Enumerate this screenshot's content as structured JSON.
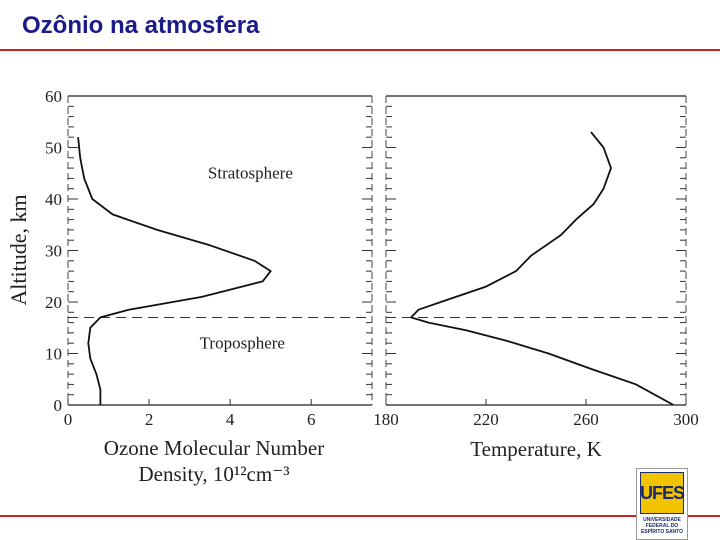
{
  "slide": {
    "title": "Ozônio na atmosfera",
    "accent_color": "#cc2222",
    "title_color": "#1a1a8c"
  },
  "logo": {
    "mark": "UFES",
    "caption": "UNIVERSIDADE FEDERAL DO ESPÍRITO SANTO",
    "icon": "university-logo"
  },
  "chart_data": [
    {
      "type": "line",
      "title": "",
      "xlabel_lines": [
        "Ozone Molecular Number",
        "Density, 10¹²cm⁻³"
      ],
      "ylabel": "Altitude, km",
      "xlim": [
        0,
        7.5
      ],
      "ylim": [
        0,
        60
      ],
      "xticks": [
        "0",
        "2",
        "4",
        "6"
      ],
      "xtick_values": [
        0,
        2,
        4,
        6
      ],
      "yticks": [
        "0",
        "10",
        "20",
        "30",
        "40",
        "50",
        "60"
      ],
      "ytick_values": [
        0,
        10,
        20,
        30,
        40,
        50,
        60
      ],
      "annotations": [
        {
          "text": "Stratosphere",
          "x": 4.5,
          "y": 44
        },
        {
          "text": "Troposphere",
          "x": 4.3,
          "y": 11
        }
      ],
      "tropopause": 17,
      "series": [
        {
          "x": [
            0.8,
            0.8,
            0.7,
            0.55,
            0.5,
            0.55,
            0.8,
            1.5,
            3.3,
            4.8,
            5.0,
            4.6,
            3.5,
            2.2,
            1.1,
            0.6,
            0.4,
            0.3,
            0.25
          ],
          "y": [
            0,
            3,
            6,
            9,
            12,
            15,
            17,
            18.5,
            21,
            24,
            26,
            28,
            31,
            34,
            37,
            40,
            44,
            48,
            52
          ]
        }
      ]
    },
    {
      "type": "line",
      "title": "",
      "xlabel": "Temperature, K",
      "xlim": [
        180,
        300
      ],
      "ylim": [
        0,
        60
      ],
      "xticks": [
        "180",
        "220",
        "260",
        "300"
      ],
      "xtick_values": [
        180,
        220,
        260,
        300
      ],
      "tropopause": 17,
      "series": [
        {
          "x": [
            295,
            280,
            262,
            245,
            228,
            212,
            197,
            190,
            193,
            205,
            220,
            232,
            238,
            250,
            256,
            263,
            267,
            270,
            267,
            262
          ],
          "y": [
            0,
            4,
            7,
            10,
            12.5,
            14.5,
            16,
            17,
            18.5,
            20.5,
            23,
            26,
            29,
            33,
            36,
            39,
            42,
            46,
            50,
            53
          ]
        }
      ]
    }
  ]
}
